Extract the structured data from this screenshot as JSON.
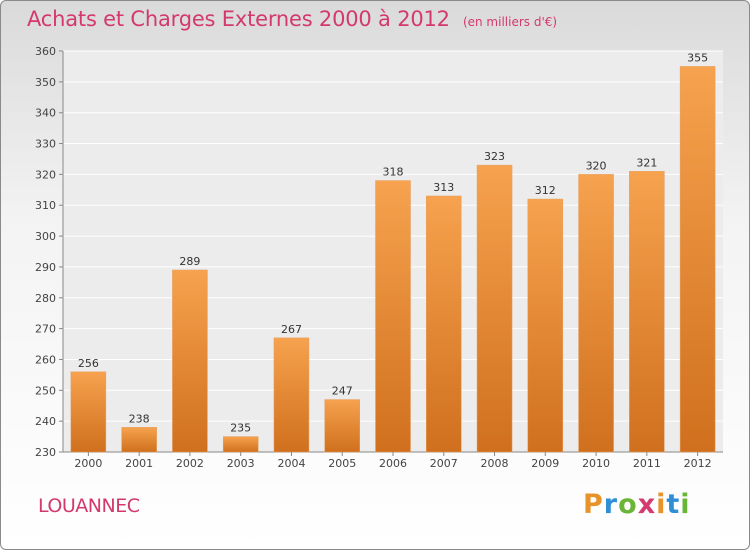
{
  "header": {
    "title": "Achats et Charges Externes 2000 à 2012",
    "subtitle": "(en milliers d'€)"
  },
  "footer": {
    "commune": "LOUANNEC",
    "logo": [
      "P",
      "r",
      "o",
      "x",
      "i",
      "t",
      "i"
    ]
  },
  "colors": {
    "bar_light": "#f6a24e",
    "bar_dark": "#d0701e",
    "title": "#d4396e"
  },
  "chart_data": {
    "type": "bar",
    "title": "Achats et Charges Externes 2000 à 2012",
    "subtitle": "(en milliers d'€)",
    "categories": [
      "2000",
      "2001",
      "2002",
      "2003",
      "2004",
      "2005",
      "2006",
      "2007",
      "2008",
      "2009",
      "2010",
      "2011",
      "2012"
    ],
    "values": [
      256,
      238,
      289,
      235,
      267,
      247,
      318,
      313,
      323,
      312,
      320,
      321,
      355
    ],
    "ylim": [
      230,
      360
    ],
    "yticks": [
      230,
      240,
      250,
      260,
      270,
      280,
      290,
      300,
      310,
      320,
      330,
      340,
      350,
      360
    ],
    "grid": true,
    "data_labels": true
  }
}
